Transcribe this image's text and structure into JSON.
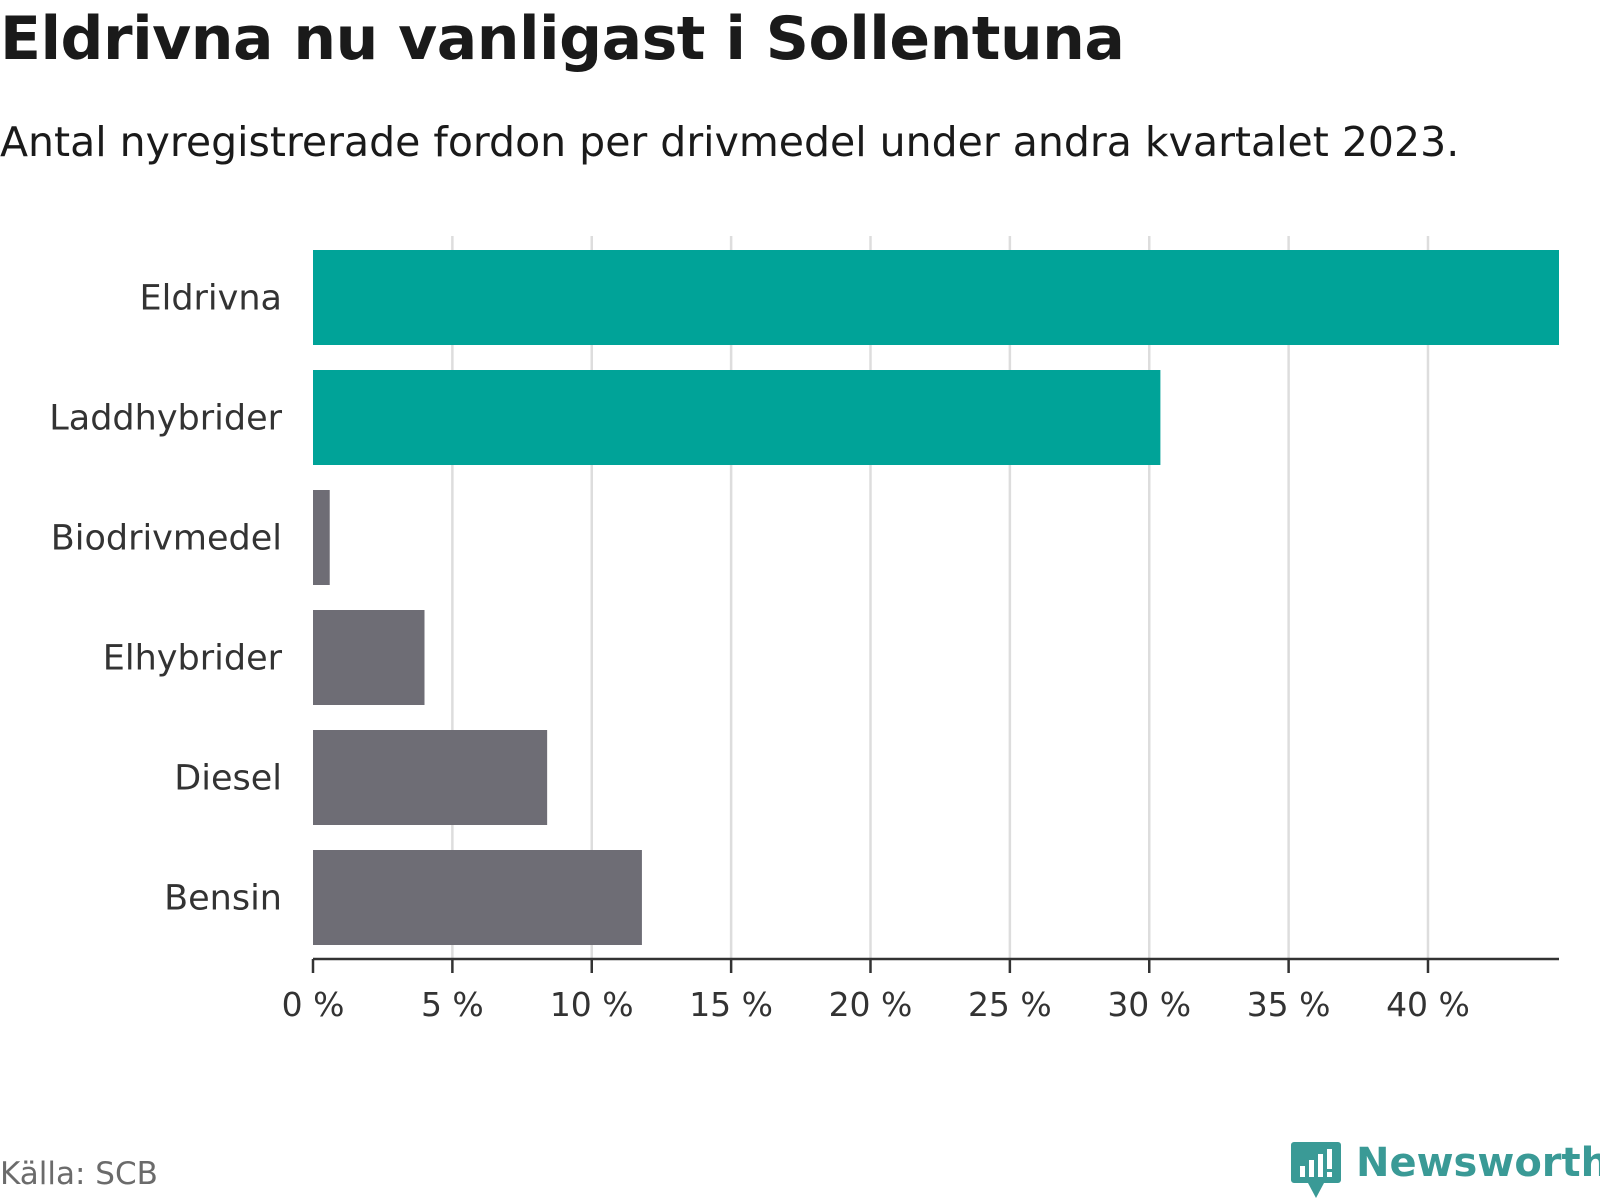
{
  "chart_data": {
    "type": "bar",
    "orientation": "horizontal",
    "title": "Eldrivna nu vanligast i Sollentuna",
    "subtitle": "Antal nyregistrerade fordon per drivmedel under andra kvartalet 2023.",
    "categories": [
      "Eldrivna",
      "Laddhybrider",
      "Biodrivmedel",
      "Elhybrider",
      "Diesel",
      "Bensin"
    ],
    "values": [
      44.7,
      30.4,
      0.6,
      4.0,
      8.4,
      11.8
    ],
    "unit": "%",
    "xlim": [
      0,
      44.7
    ],
    "xticks": [
      0,
      5,
      10,
      15,
      20,
      25,
      30,
      35,
      40
    ],
    "tick_labels": [
      "0 %",
      "5 %",
      "10 %",
      "15 %",
      "20 %",
      "25 %",
      "30 %",
      "35 %",
      "40 %"
    ],
    "grid": true,
    "colors": {
      "highlight": "#00a398",
      "default": "#6e6d75",
      "grid": "#dddddd",
      "axis": "#333333"
    },
    "highlighted_categories": [
      "Eldrivna",
      "Laddhybrider"
    ]
  },
  "footer": {
    "source": "Källa: SCB",
    "brand": "Newsworthy",
    "brand_color": "#3a9a96",
    "brand_icon": "bar-chart-speech-bubble-icon"
  }
}
